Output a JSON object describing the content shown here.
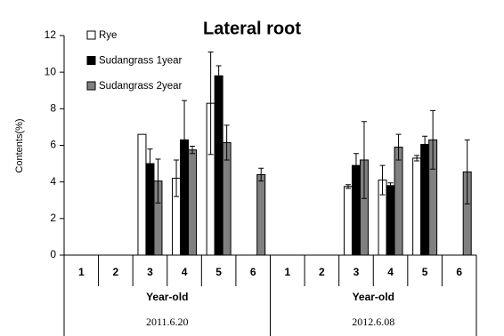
{
  "chart_data": {
    "type": "bar",
    "title": "Lateral root",
    "y_label": "Contents(%)",
    "groups": [
      {
        "label": "2011.6.20",
        "axis_label": "Year-old",
        "categories": [
          "1",
          "2",
          "3",
          "4",
          "5",
          "6"
        ]
      },
      {
        "label": "2012.6.08",
        "axis_label": "Year-old",
        "categories": [
          "1",
          "2",
          "3",
          "4",
          "5",
          "6"
        ]
      }
    ],
    "series": [
      {
        "name": "Rye",
        "color": "#ffffff",
        "values": [
          null,
          null,
          6.6,
          4.2,
          8.3,
          null,
          null,
          null,
          3.75,
          4.1,
          5.3,
          null
        ],
        "errors": [
          null,
          null,
          null,
          1.0,
          2.8,
          null,
          null,
          null,
          0.1,
          0.8,
          0.15,
          null
        ]
      },
      {
        "name": "Sudangrass 1year",
        "color": "#000000",
        "values": [
          null,
          null,
          5.0,
          6.3,
          9.8,
          null,
          null,
          null,
          4.9,
          3.8,
          6.05,
          null
        ],
        "errors": [
          null,
          null,
          0.8,
          2.15,
          0.55,
          null,
          null,
          null,
          0.65,
          0.15,
          0.45,
          null
        ]
      },
      {
        "name": "Sudangrass 2year",
        "color": "#808080",
        "values": [
          null,
          null,
          4.05,
          5.75,
          6.15,
          4.4,
          null,
          null,
          5.2,
          5.9,
          6.3,
          4.55
        ],
        "errors": [
          null,
          null,
          1.2,
          0.2,
          0.95,
          0.35,
          null,
          null,
          2.1,
          0.7,
          1.6,
          1.75
        ]
      }
    ],
    "ylim": [
      0,
      12
    ],
    "yticks": [
      0,
      2,
      4,
      6,
      8,
      10,
      12
    ],
    "legend": "top-left"
  }
}
